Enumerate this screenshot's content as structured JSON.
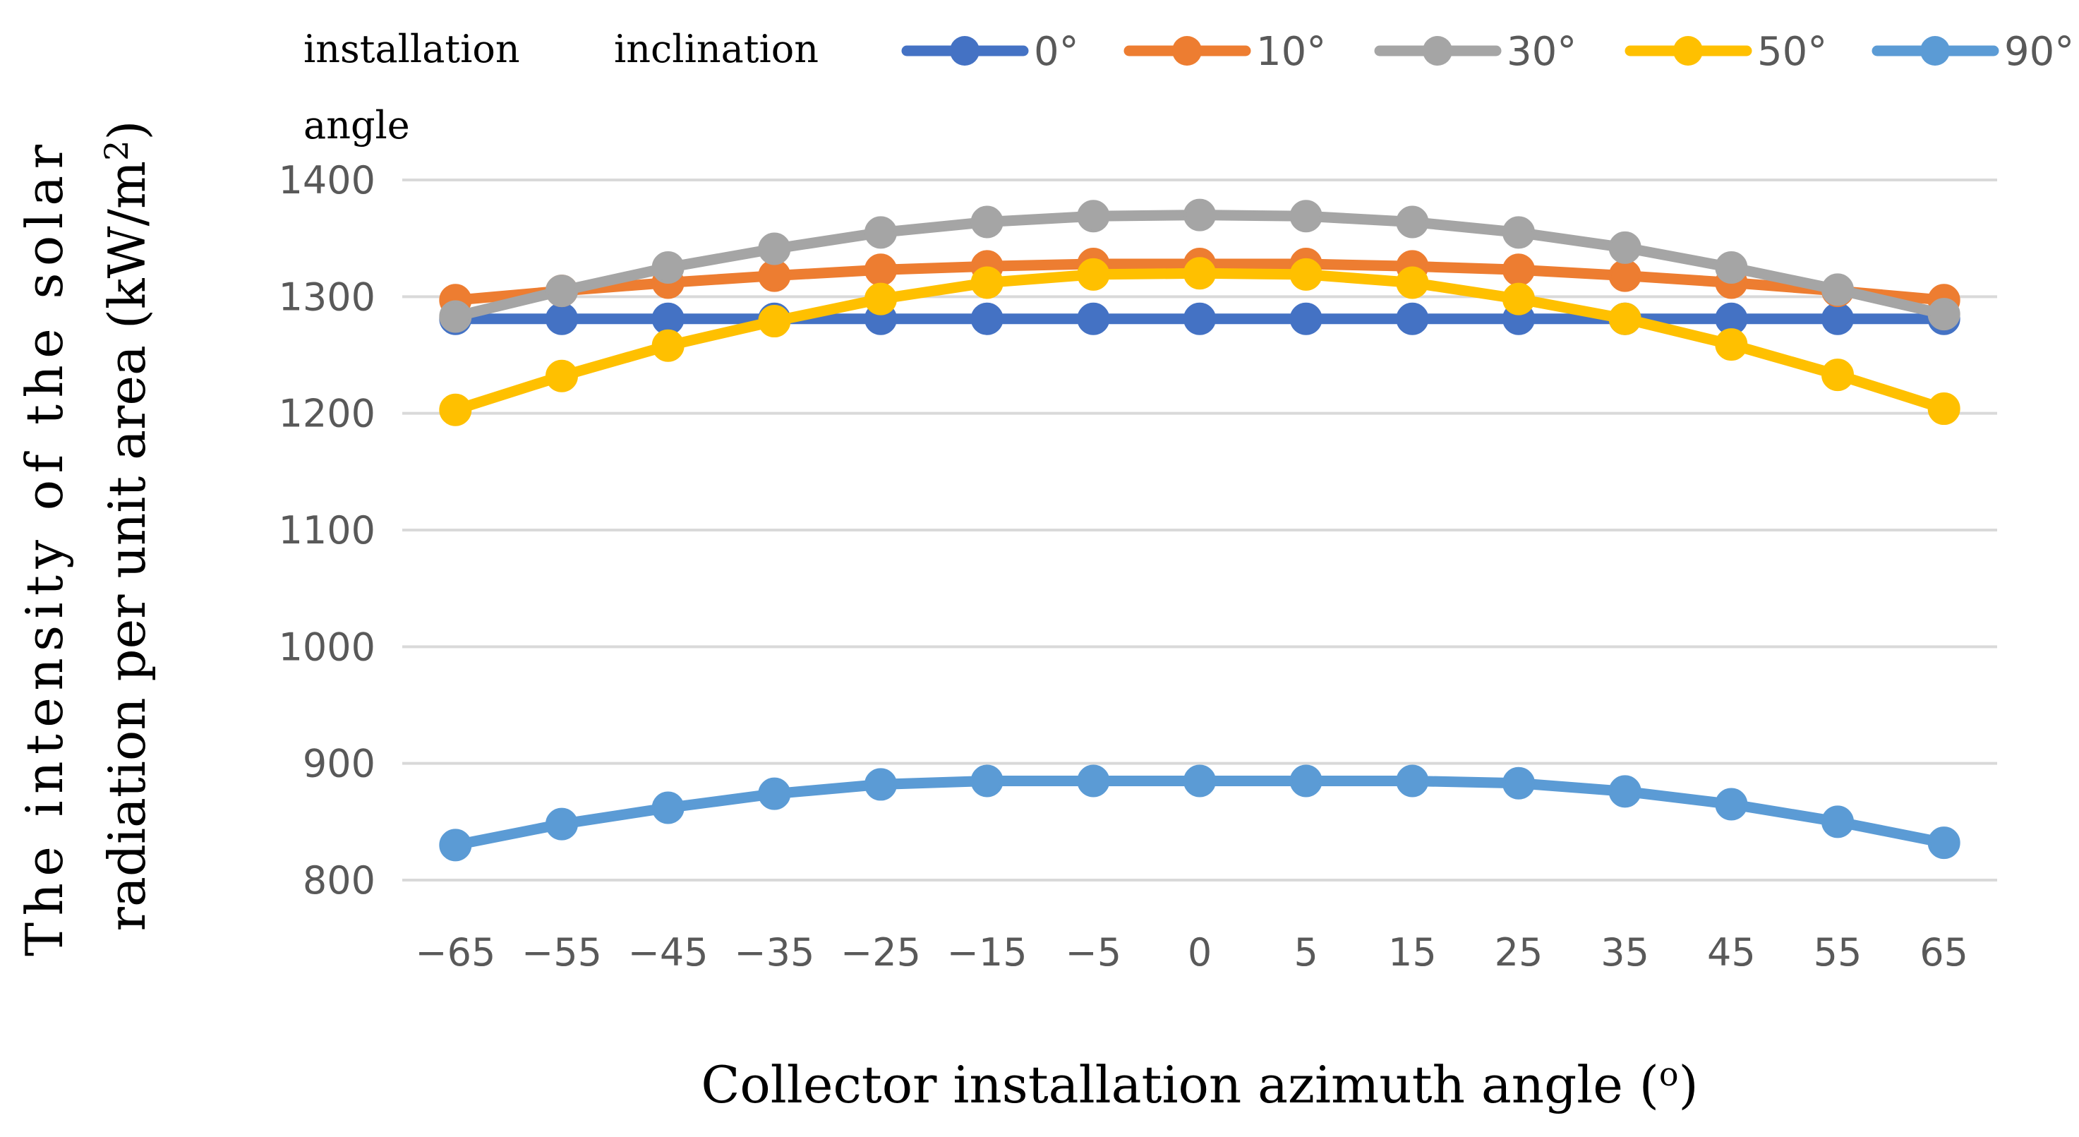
{
  "chart_data": {
    "type": "line",
    "title": "",
    "legend_title": "installation inclination angle",
    "legend_title_lines": [
      "installation",
      "inclination",
      "angle"
    ],
    "legend_position": "top",
    "xlabel": "Collector installation azimuth angle (o)",
    "xlabel_parts": {
      "before": "Collector installation azimuth angle (",
      "superscript": "o",
      "after": ")"
    },
    "ylabel": "The intensity of the solar radiation per unit area (kW/m2)",
    "ylabel_lines": [
      {
        "text": "The intensity of the solar"
      },
      {
        "before": "radiation per unit area (kW/m",
        "superscript": "2",
        "after": ")"
      }
    ],
    "categories": [
      "−65",
      "−55",
      "−45",
      "−35",
      "−25",
      "−15",
      "−5",
      "0",
      "5",
      "15",
      "25",
      "35",
      "45",
      "55",
      "65"
    ],
    "x": [
      -65,
      -55,
      -45,
      -35,
      -25,
      -15,
      -5,
      0,
      5,
      15,
      25,
      35,
      45,
      55,
      65
    ],
    "ylim": [
      800,
      1400
    ],
    "yticks": [
      800,
      900,
      1000,
      1100,
      1200,
      1300,
      1400
    ],
    "grid": true,
    "series": [
      {
        "name": "0°",
        "color": "#4472C4",
        "values": [
          1281,
          1281,
          1281,
          1281,
          1281,
          1281,
          1281,
          1281,
          1281,
          1281,
          1281,
          1281,
          1281,
          1281,
          1281
        ]
      },
      {
        "name": "10°",
        "color": "#ED7D31",
        "values": [
          1297,
          1305,
          1312,
          1318,
          1323,
          1326,
          1328,
          1328,
          1328,
          1326,
          1323,
          1318,
          1312,
          1305,
          1297
        ]
      },
      {
        "name": "30°",
        "color": "#A5A5A5",
        "values": [
          1283,
          1305,
          1325,
          1341,
          1355,
          1364,
          1369,
          1370,
          1369,
          1364,
          1355,
          1342,
          1325,
          1306,
          1285
        ]
      },
      {
        "name": "50°",
        "color": "#FFC000",
        "values": [
          1203,
          1232,
          1258,
          1279,
          1298,
          1312,
          1319,
          1320,
          1319,
          1312,
          1298,
          1281,
          1259,
          1233,
          1204
        ]
      },
      {
        "name": "90°",
        "color": "#5B9BD5",
        "values": [
          830,
          848,
          862,
          874,
          882,
          885,
          885,
          885,
          885,
          885,
          883,
          876,
          865,
          850,
          832
        ]
      }
    ]
  }
}
